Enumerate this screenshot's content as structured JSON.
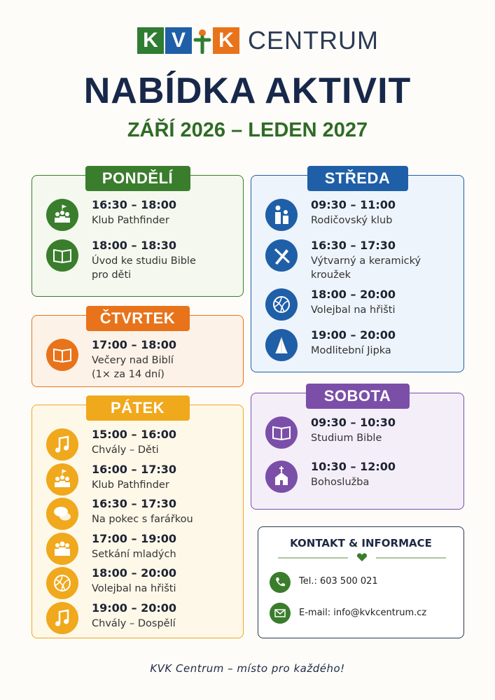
{
  "logo": {
    "letters": [
      "K",
      "V",
      "K"
    ],
    "text": "CENTRUM"
  },
  "title": "NABÍDKA AKTIVIT",
  "subtitle": "ZÁŘÍ 2026 – LEDEN 2027",
  "days": [
    {
      "name": "PONDĚLÍ",
      "items": [
        {
          "time": "16:30 – 18:00",
          "lines": [
            "Klub Pathfinder"
          ]
        },
        {
          "time": "18:00 – 18:30",
          "lines": [
            "Úvod ke studiu Bible",
            "pro děti"
          ]
        }
      ]
    },
    {
      "name": "STŘEDA",
      "items": [
        {
          "time": "09:30 – 11:00",
          "lines": [
            "Rodičovský klub"
          ]
        },
        {
          "time": "16:30 – 17:30",
          "lines": [
            "Výtvarný a keramický",
            "kroužek"
          ]
        },
        {
          "time": "18:00 – 20:00",
          "lines": [
            "Volejbal na hřišti"
          ]
        },
        {
          "time": "19:00 – 20:00",
          "lines": [
            "Modlitební Jipka"
          ]
        }
      ]
    },
    {
      "name": "ČTVRTEK",
      "items": [
        {
          "time": "17:00 – 18:00",
          "lines": [
            "Večery nad Biblí",
            "(1× za 14 dní)"
          ]
        }
      ]
    },
    {
      "name": "PÁTEK",
      "items": [
        {
          "time": "15:00 – 16:00",
          "lines": [
            "Chvály – Děti"
          ]
        },
        {
          "time": "16:00 – 17:30",
          "lines": [
            "Klub Pathfinder"
          ]
        },
        {
          "time": "16:30 – 17:30",
          "lines": [
            "Na pokec s farářkou"
          ]
        },
        {
          "time": "17:00 – 19:00",
          "lines": [
            "Setkání mladých"
          ]
        },
        {
          "time": "18:00 – 20:00",
          "lines": [
            "Volejbal na hřišti"
          ]
        },
        {
          "time": "19:00 – 20:00",
          "lines": [
            "Chvály – Dospělí"
          ]
        }
      ]
    },
    {
      "name": "SOBOTA",
      "items": [
        {
          "time": "09:30 – 10:30",
          "lines": [
            "Studium Bible"
          ]
        },
        {
          "time": "10:30 – 12:00",
          "lines": [
            "Bohoslužba"
          ]
        }
      ]
    }
  ],
  "contact": {
    "title": "KONTAKT & INFORMACE",
    "phone": "Tel.: 603 500 021",
    "email": "E-mail: info@kvkcentrum.cz"
  },
  "footer": "KVK Centrum – místo pro každého!"
}
